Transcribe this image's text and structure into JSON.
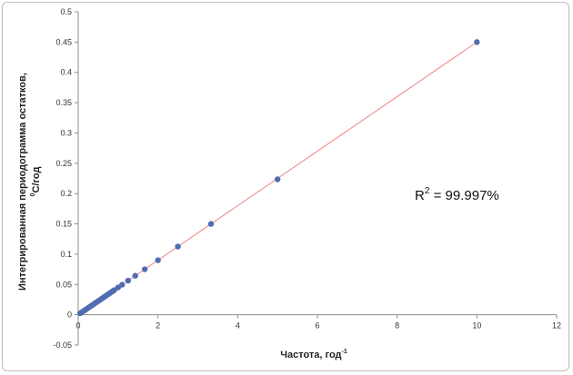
{
  "chart_data": {
    "type": "scatter",
    "title": "",
    "xlabel": "Частота, год",
    "xlabel_superscript": "-1",
    "ylabel_line1": "Интегрированная периодограмма остатков,",
    "ylabel_line2_prefix": "0",
    "ylabel_line2_rest": "C/год",
    "xlim": [
      0,
      12
    ],
    "ylim": [
      -0.05,
      0.5
    ],
    "x_ticks": [
      0,
      2,
      4,
      6,
      8,
      10,
      12
    ],
    "y_ticks": [
      -0.05,
      0,
      0.05,
      0.1,
      0.15,
      0.2,
      0.25,
      0.3,
      0.35,
      0.4,
      0.45,
      0.5
    ],
    "x_tick_labels": [
      "0",
      "2",
      "4",
      "6",
      "8",
      "10",
      "12"
    ],
    "y_tick_labels": [
      "-0.05",
      "0",
      "0.05",
      "0.1",
      "0.15",
      "0.2",
      "0.25",
      "0.3",
      "0.35",
      "0.4",
      "0.45",
      "0.5"
    ],
    "grid": false,
    "legend": "none",
    "series": [
      {
        "marker_color": "#4f6db0",
        "x": [
          0.05,
          0.1,
          0.15,
          0.2,
          0.25,
          0.3,
          0.35,
          0.4,
          0.45,
          0.5,
          0.55,
          0.6,
          0.65,
          0.7,
          0.75,
          0.8,
          0.85,
          0.9,
          1.0,
          1.1,
          1.25,
          1.43,
          1.67,
          2.0,
          2.5,
          3.33,
          5.0,
          10.0
        ],
        "y": [
          0.0025,
          0.0045,
          0.0068,
          0.009,
          0.0113,
          0.0135,
          0.0158,
          0.018,
          0.0203,
          0.0225,
          0.0248,
          0.027,
          0.0293,
          0.0315,
          0.0338,
          0.036,
          0.0383,
          0.0405,
          0.045,
          0.0495,
          0.0563,
          0.0643,
          0.0751,
          0.09,
          0.1125,
          0.1499,
          0.2235,
          0.45
        ]
      }
    ],
    "trendline": {
      "color": "#f08080",
      "x": [
        0,
        10
      ],
      "y": [
        0,
        0.45
      ]
    },
    "annotation": {
      "prefix": "R",
      "superscript": "2",
      "suffix": " = 99.997%",
      "x": 9.5,
      "y": 0.19
    }
  }
}
